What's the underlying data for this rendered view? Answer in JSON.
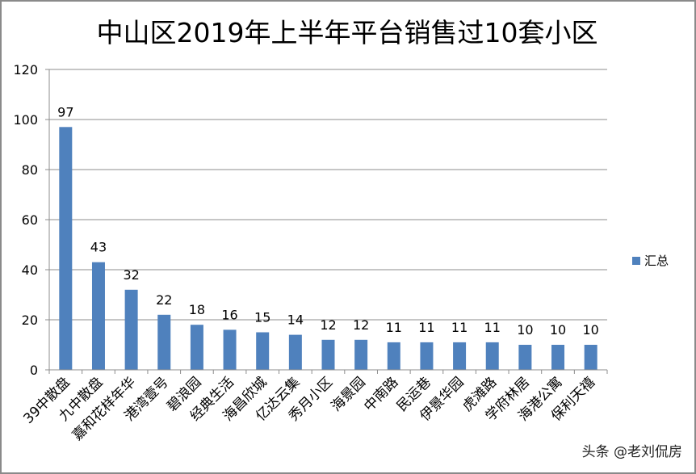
{
  "chart_data": {
    "type": "bar",
    "title": "中山区2019年上半年平台销售过10套小区",
    "categories": [
      "39中散盘",
      "九中散盘",
      "嘉和花样年华",
      "港湾壹号",
      "碧浪园",
      "经典生活",
      "海昌欣城",
      "亿达云集",
      "秀月小区",
      "海景园",
      "中南路",
      "民运巷",
      "伊景华园",
      "虎滩路",
      "学府林居",
      "海港公寓",
      "保利天禧"
    ],
    "series": [
      {
        "name": "汇总",
        "values": [
          97,
          43,
          32,
          22,
          18,
          16,
          15,
          14,
          12,
          12,
          11,
          11,
          11,
          11,
          10,
          10,
          10
        ]
      }
    ],
    "ylim": [
      0,
      120
    ],
    "yticks": [
      0,
      20,
      40,
      60,
      80,
      100,
      120
    ],
    "grid": true,
    "legend": "right",
    "data_labels": true,
    "bar_color": "#4f81bd",
    "xlabel": "",
    "ylabel": ""
  },
  "watermark": "头条 @老刘侃房"
}
